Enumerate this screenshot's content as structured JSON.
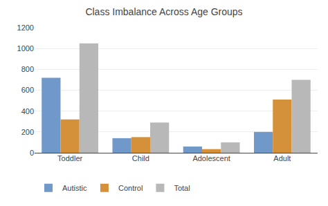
{
  "chart_data": {
    "type": "bar",
    "title": "Class Imbalance Across Age Groups",
    "categories": [
      "Toddler",
      "Child",
      "Adolescent",
      "Adult"
    ],
    "series": [
      {
        "name": "Autistic",
        "color": "#7098c8",
        "values": [
          720,
          140,
          60,
          200
        ]
      },
      {
        "name": "Control",
        "color": "#d4913a",
        "values": [
          320,
          150,
          35,
          510
        ]
      },
      {
        "name": "Total",
        "color": "#b8b8b8",
        "values": [
          1050,
          290,
          100,
          700
        ]
      }
    ],
    "ylim": [
      0,
      1200
    ],
    "yticks": [
      0,
      200,
      400,
      600,
      800,
      1000,
      1200
    ],
    "grid": true,
    "legend": "bottom"
  }
}
